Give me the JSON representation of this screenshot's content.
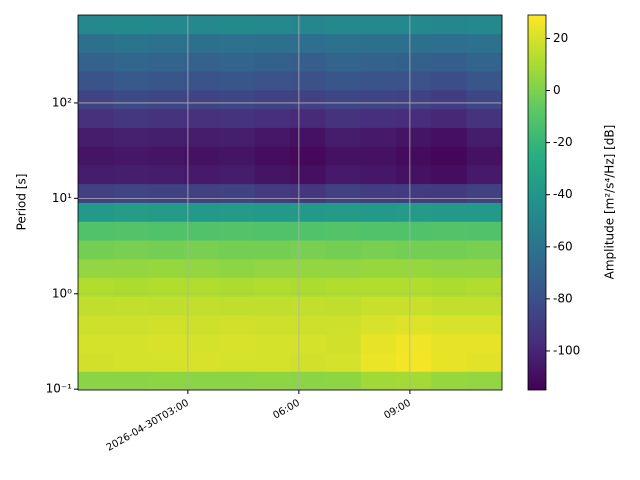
{
  "chart_data": {
    "type": "heatmap",
    "cmap": "viridis",
    "ylabel": "Period [s]",
    "colorbar_label": "Amplitude [m²/s⁴/Hz] [dB]",
    "y_log": true,
    "grid": true,
    "xlim": [
      0.03,
      11.49
    ],
    "xticks": [
      {
        "value": 3,
        "label": "2026-04-30T03:00"
      },
      {
        "value": 6,
        "label": "06:00"
      },
      {
        "value": 9,
        "label": "09:00"
      }
    ],
    "ylim": [
      0.098,
      835
    ],
    "yticks": [
      {
        "value": 0.1,
        "label": "10⁻¹"
      },
      {
        "value": 1,
        "label": "10⁰"
      },
      {
        "value": 10,
        "label": "10¹"
      },
      {
        "value": 100,
        "label": "10²"
      }
    ],
    "clim": [
      -115,
      29
    ],
    "cbar_ticks": [
      20,
      0,
      -20,
      -40,
      -60,
      -80,
      -100
    ],
    "x": [
      0.51,
      1.46,
      2.42,
      3.37,
      4.33,
      5.28,
      6.24,
      7.19,
      8.15,
      9.1,
      10.06,
      11.01
    ],
    "y": [
      0.123,
      0.193,
      0.303,
      0.477,
      0.75,
      1.18,
      1.86,
      2.92,
      4.59,
      7.22,
      11.4,
      17.9,
      28.1,
      44.2,
      69.4,
      109,
      172,
      270,
      424,
      668
    ],
    "z": [
      [
        3,
        3,
        4,
        3,
        3,
        4,
        3,
        4,
        8,
        9,
        6,
        5
      ],
      [
        19,
        20,
        20,
        21,
        20,
        20,
        19,
        20,
        25,
        27,
        24,
        23
      ],
      [
        20,
        20,
        21,
        20,
        21,
        20,
        20,
        19,
        24,
        26,
        24,
        24
      ],
      [
        18,
        18,
        19,
        18,
        19,
        18,
        18,
        18,
        21,
        22,
        21,
        21
      ],
      [
        15,
        16,
        15,
        16,
        15,
        15,
        16,
        15,
        17,
        17,
        16,
        16
      ],
      [
        12,
        11,
        12,
        12,
        11,
        12,
        11,
        12,
        12,
        12,
        11,
        12
      ],
      [
        5,
        5,
        6,
        5,
        4,
        5,
        5,
        5,
        6,
        6,
        5,
        5
      ],
      [
        -2,
        -1,
        -2,
        -1,
        -2,
        -2,
        -1,
        -2,
        -1,
        -2,
        -2,
        -1
      ],
      [
        -12,
        -11,
        -12,
        -12,
        -11,
        -12,
        -12,
        -11,
        -12,
        -12,
        -11,
        -12
      ],
      [
        -38,
        -36,
        -37,
        -38,
        -37,
        -38,
        -38,
        -37,
        -38,
        -37,
        -38,
        -38
      ],
      [
        -88,
        -86,
        -87,
        -88,
        -87,
        -90,
        -92,
        -88,
        -89,
        -90,
        -91,
        -88
      ],
      [
        -104,
        -103,
        -104,
        -105,
        -104,
        -107,
        -109,
        -105,
        -106,
        -108,
        -110,
        -105
      ],
      [
        -107,
        -106,
        -107,
        -108,
        -107,
        -110,
        -112,
        -108,
        -108,
        -111,
        -113,
        -108
      ],
      [
        -104,
        -102,
        -103,
        -104,
        -103,
        -106,
        -108,
        -104,
        -105,
        -107,
        -109,
        -104
      ],
      [
        -95,
        -92,
        -94,
        -95,
        -94,
        -96,
        -98,
        -94,
        -96,
        -97,
        -99,
        -94
      ],
      [
        -86,
        -83,
        -85,
        -86,
        -85,
        -87,
        -88,
        -85,
        -86,
        -87,
        -89,
        -85
      ],
      [
        -78,
        -75,
        -77,
        -78,
        -77,
        -79,
        -80,
        -77,
        -78,
        -79,
        -81,
        -77
      ],
      [
        -70,
        -68,
        -69,
        -70,
        -69,
        -71,
        -72,
        -69,
        -70,
        -71,
        -72,
        -69
      ],
      [
        -62,
        -60,
        -61,
        -62,
        -61,
        -62,
        -63,
        -61,
        -62,
        -62,
        -63,
        -61
      ],
      [
        -48,
        -47,
        -48,
        -48,
        -47,
        -48,
        -49,
        -48,
        -48,
        -48,
        -49,
        -48
      ]
    ]
  }
}
